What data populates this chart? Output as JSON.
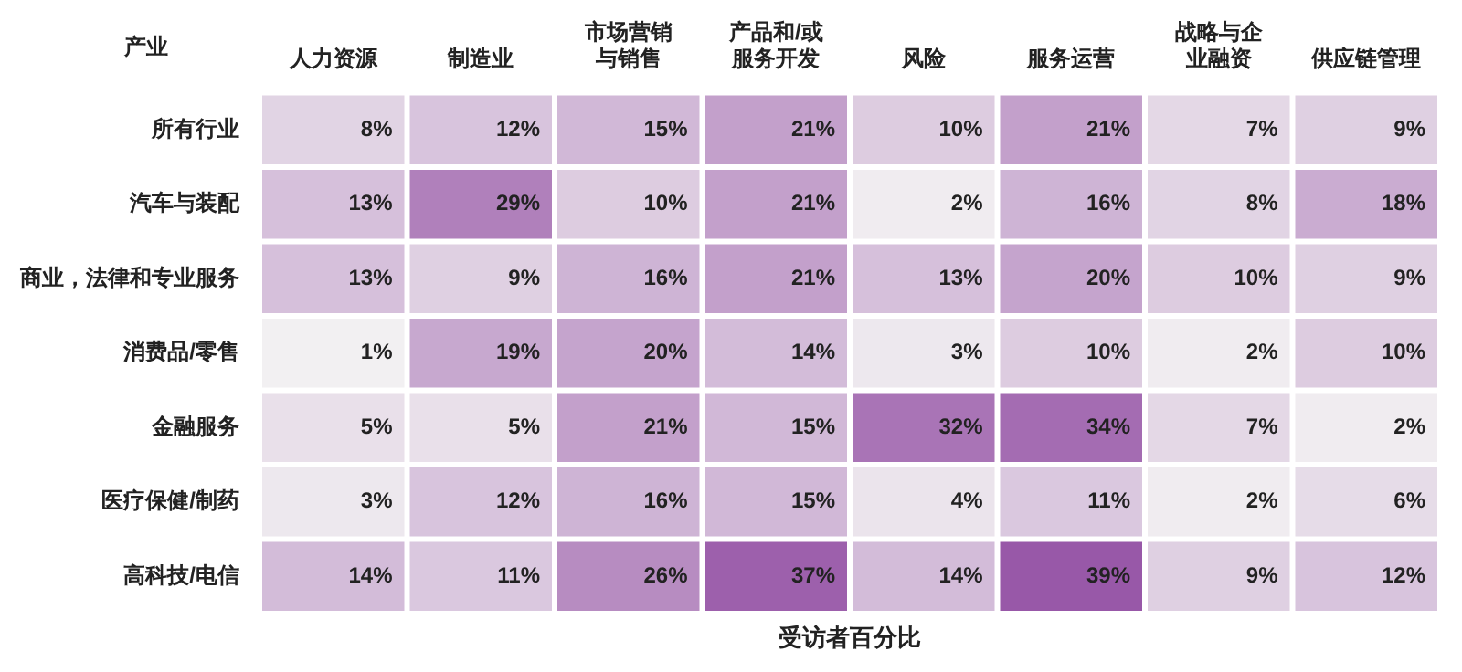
{
  "chart_data": {
    "type": "heatmap",
    "xlabel": "受访者百分比",
    "ylabel": "产业",
    "categories": [
      "人力资源",
      "制造业",
      "市场营销与销售",
      "产品和/或服务开发",
      "风险",
      "服务运营",
      "战略与企业融资",
      "供应链管理"
    ],
    "y_categories": [
      "所有行业",
      "汽车与装配",
      "商业，法律和专业服务",
      "消费品/零售",
      "金融服务",
      "医疗保健/制药",
      "高科技/电信"
    ],
    "cells": [
      [
        8,
        12,
        15,
        21,
        10,
        21,
        7,
        9
      ],
      [
        13,
        29,
        10,
        21,
        2,
        16,
        8,
        18
      ],
      [
        13,
        9,
        16,
        21,
        13,
        20,
        10,
        9
      ],
      [
        1,
        19,
        20,
        14,
        3,
        10,
        2,
        10
      ],
      [
        5,
        5,
        21,
        15,
        32,
        34,
        7,
        2
      ],
      [
        3,
        12,
        16,
        15,
        4,
        11,
        2,
        6
      ],
      [
        14,
        11,
        26,
        37,
        14,
        39,
        9,
        12
      ]
    ],
    "cell_labels": [
      [
        "8%",
        "12%",
        "15%",
        "21%",
        "10%",
        "21%",
        "7%",
        "9%"
      ],
      [
        "13%",
        "29%",
        "10%",
        "21%",
        "2%",
        "16%",
        "8%",
        "18%"
      ],
      [
        "13%",
        "9%",
        "16%",
        "21%",
        "13%",
        "20%",
        "10%",
        "9%"
      ],
      [
        "1%",
        "19%",
        "20%",
        "14%",
        "3%",
        "10%",
        "2%",
        "10%"
      ],
      [
        "5%",
        "5%",
        "21%",
        "15%",
        "32%",
        "34%",
        "7%",
        "2%"
      ],
      [
        "3%",
        "12%",
        "16%",
        "15%",
        "4%",
        "11%",
        "2%",
        "6%"
      ],
      [
        "14%",
        "11%",
        "26%",
        "37%",
        "14%",
        "39%",
        "9%",
        "12%"
      ]
    ]
  }
}
